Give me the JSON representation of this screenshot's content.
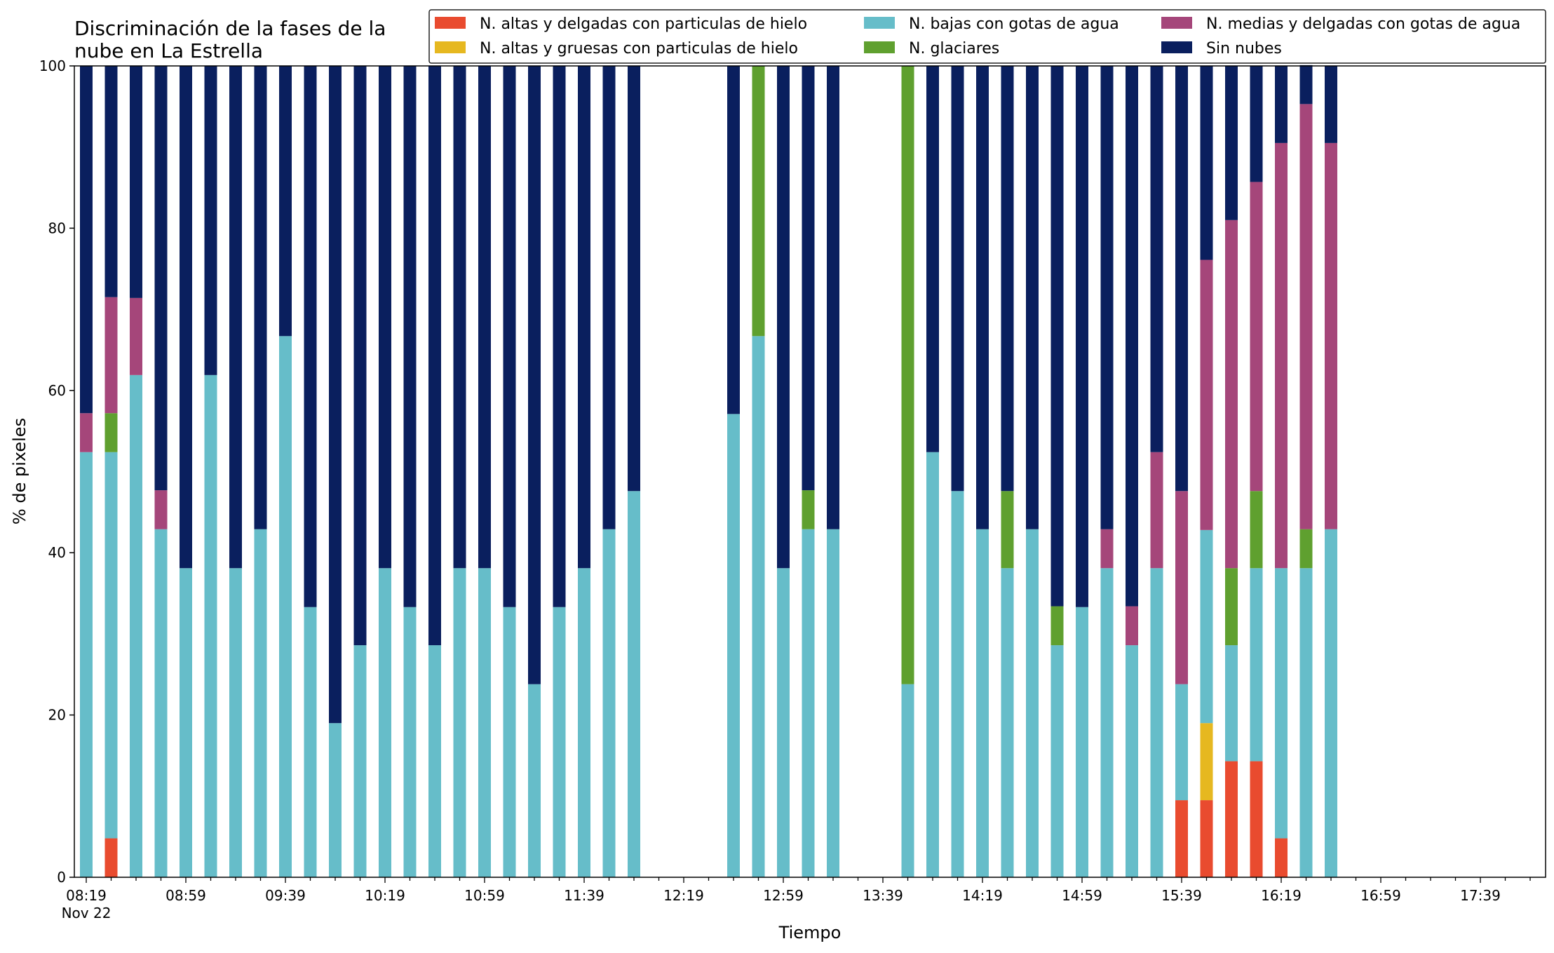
{
  "chart_data": {
    "type": "bar",
    "stacked": true,
    "title_lines": [
      "Discriminación de la fases de la",
      "nube en La Estrella"
    ],
    "xlabel": "Tiempo",
    "ylabel": "% de pixeles",
    "ylim": [
      0,
      100
    ],
    "yticks": [
      "0",
      "20",
      "40",
      "60",
      "80",
      "100"
    ],
    "grid": false,
    "legend_placement": "top-right",
    "x_tick_labels": [
      "08:19",
      "08:59",
      "09:39",
      "10:19",
      "10:59",
      "11:39",
      "12:19",
      "12:59",
      "13:39",
      "14:19",
      "14:59",
      "15:39",
      "16:19",
      "16:59",
      "17:39"
    ],
    "x_date_label": "Nov 22",
    "categories": [
      "08:19",
      "08:29",
      "08:39",
      "08:49",
      "08:59",
      "09:09",
      "09:19",
      "09:29",
      "09:39",
      "09:49",
      "09:59",
      "10:09",
      "10:19",
      "10:29",
      "10:39",
      "10:49",
      "10:59",
      "11:09",
      "11:19",
      "11:29",
      "11:39",
      "11:49",
      "11:59",
      "12:09",
      "12:19",
      "12:29",
      "12:39",
      "12:49",
      "12:59",
      "13:09",
      "13:19",
      "13:29",
      "13:39",
      "13:49",
      "13:59",
      "14:09",
      "14:19",
      "14:29",
      "14:39",
      "14:49",
      "14:59",
      "15:09",
      "15:19",
      "15:29",
      "15:39",
      "15:49",
      "15:59",
      "16:09",
      "16:19",
      "16:29",
      "16:39",
      "16:49",
      "16:59",
      "17:09",
      "17:19",
      "17:29",
      "17:39",
      "17:49",
      "17:59"
    ],
    "series": [
      {
        "name": "N. altas y delgadas con particulas de hielo",
        "color": "#e94b2f",
        "values": [
          0,
          4.8,
          0,
          0,
          0,
          0,
          0,
          0,
          0,
          0,
          0,
          0,
          0,
          0,
          0,
          0,
          0,
          0,
          0,
          0,
          0,
          0,
          0,
          0,
          0,
          0,
          0,
          0,
          0,
          0,
          0,
          0,
          0,
          0,
          0,
          0,
          0,
          0,
          0,
          0,
          0,
          0,
          0,
          0,
          9.5,
          9.5,
          14.3,
          14.3,
          4.8,
          0,
          0,
          0,
          0,
          0,
          0,
          0,
          0,
          0,
          0
        ]
      },
      {
        "name": "N. altas y gruesas con particulas de hielo",
        "color": "#e6b820",
        "values": [
          0,
          0,
          0,
          0,
          0,
          0,
          0,
          0,
          0,
          0,
          0,
          0,
          0,
          0,
          0,
          0,
          0,
          0,
          0,
          0,
          0,
          0,
          0,
          0,
          0,
          0,
          0,
          0,
          0,
          0,
          0,
          0,
          0,
          0,
          0,
          0,
          0,
          0,
          0,
          0,
          0,
          0,
          0,
          0,
          0,
          9.5,
          0,
          0,
          0,
          0,
          0,
          0,
          0,
          0,
          0,
          0,
          0,
          0,
          0
        ]
      },
      {
        "name": "N. bajas con gotas de agua",
        "color": "#66bdc9",
        "values": [
          52.4,
          47.6,
          61.9,
          42.9,
          38.1,
          61.9,
          38.1,
          42.9,
          66.7,
          33.3,
          19.0,
          28.6,
          38.1,
          33.3,
          28.6,
          38.1,
          38.1,
          33.3,
          23.8,
          33.3,
          38.1,
          42.9,
          47.6,
          0,
          0,
          0,
          57.1,
          66.7,
          38.1,
          42.9,
          42.9,
          0,
          0,
          23.8,
          52.4,
          47.6,
          42.9,
          38.1,
          42.9,
          28.6,
          33.3,
          38.1,
          28.6,
          38.1,
          14.3,
          23.8,
          14.3,
          23.8,
          33.3,
          38.1,
          42.9,
          0,
          0,
          0,
          0,
          0,
          0,
          0,
          0
        ]
      },
      {
        "name": "N. glaciares",
        "color": "#5fa02f",
        "values": [
          0,
          4.8,
          0,
          0,
          0,
          0,
          0,
          0,
          0,
          0,
          0,
          0,
          0,
          0,
          0,
          0,
          0,
          0,
          0,
          0,
          0,
          0,
          0,
          0,
          0,
          0,
          0,
          33.3,
          0,
          4.8,
          0,
          0,
          0,
          76.2,
          0,
          0,
          0,
          9.5,
          0,
          4.8,
          0,
          0,
          0,
          0,
          0,
          0,
          9.5,
          9.5,
          0,
          4.8,
          0,
          0,
          0,
          0,
          0,
          0,
          0,
          0,
          0
        ]
      },
      {
        "name": "N. medias y delgadas con gotas de agua",
        "color": "#a5467a",
        "values": [
          4.8,
          14.3,
          9.5,
          4.8,
          0,
          0,
          0,
          0,
          0,
          0,
          0,
          0,
          0,
          0,
          0,
          0,
          0,
          0,
          0,
          0,
          0,
          0,
          0,
          0,
          0,
          0,
          0,
          0,
          0,
          0,
          0,
          0,
          0,
          0,
          0,
          0,
          0,
          0,
          0,
          0,
          0,
          4.8,
          4.8,
          14.3,
          23.8,
          33.3,
          42.9,
          38.1,
          52.4,
          52.4,
          47.6,
          0,
          0,
          0,
          0,
          0,
          0,
          0,
          0
        ]
      },
      {
        "name": "Sin nubes",
        "color": "#0a1f5e",
        "values": [
          42.8,
          28.5,
          28.6,
          52.3,
          61.9,
          38.1,
          61.9,
          57.1,
          33.3,
          66.7,
          81.0,
          71.4,
          61.9,
          66.7,
          71.4,
          61.9,
          61.9,
          66.7,
          76.2,
          66.7,
          61.9,
          57.1,
          52.4,
          0,
          0,
          0,
          42.9,
          0,
          61.9,
          52.3,
          57.1,
          0,
          0,
          0,
          47.6,
          52.4,
          57.1,
          52.4,
          57.1,
          66.6,
          66.7,
          57.1,
          66.6,
          47.6,
          52.4,
          23.9,
          19.0,
          14.3,
          9.5,
          4.8,
          9.5,
          0,
          0,
          0,
          0,
          0,
          0,
          0,
          0
        ]
      }
    ]
  }
}
